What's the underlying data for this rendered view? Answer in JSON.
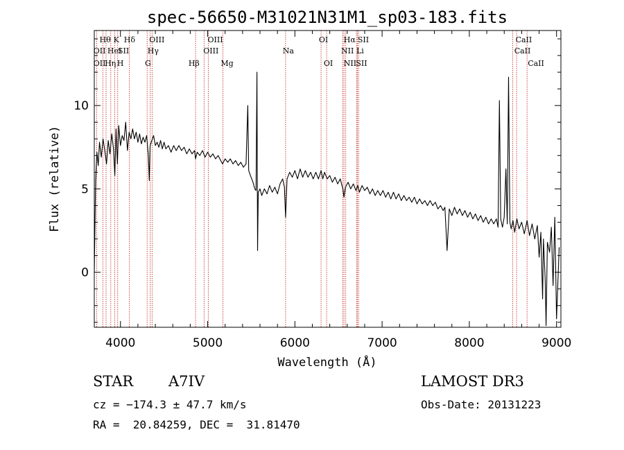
{
  "chart_data": {
    "type": "line",
    "title": "spec-56650-M31021N31M1_sp03-183.fits",
    "xlabel": "Wavelength (Å)",
    "ylabel": "Flux (relative)",
    "xlim": [
      3700,
      9050
    ],
    "ylim": [
      -3.3,
      14.5
    ],
    "xticks": [
      4000,
      5000,
      6000,
      7000,
      8000,
      9000
    ],
    "yticks": [
      0,
      5,
      10
    ],
    "xtick_labels": [
      "4000",
      "5000",
      "6000",
      "7000",
      "8000",
      "9000"
    ],
    "ytick_labels": [
      "0",
      "5",
      "10"
    ],
    "spectrum": [
      [
        3700,
        0.0
      ],
      [
        3715,
        5.5
      ],
      [
        3730,
        7.2
      ],
      [
        3745,
        6.4
      ],
      [
        3760,
        7.8
      ],
      [
        3780,
        6.9
      ],
      [
        3800,
        8.0
      ],
      [
        3820,
        7.3
      ],
      [
        3840,
        6.5
      ],
      [
        3860,
        7.9
      ],
      [
        3880,
        7.1
      ],
      [
        3900,
        8.3
      ],
      [
        3920,
        7.4
      ],
      [
        3935,
        5.8
      ],
      [
        3950,
        8.6
      ],
      [
        3965,
        6.5
      ],
      [
        3980,
        8.8
      ],
      [
        4000,
        7.6
      ],
      [
        4020,
        8.2
      ],
      [
        4040,
        7.9
      ],
      [
        4060,
        9.0
      ],
      [
        4080,
        7.3
      ],
      [
        4100,
        8.4
      ],
      [
        4120,
        8.0
      ],
      [
        4140,
        8.6
      ],
      [
        4160,
        8.0
      ],
      [
        4180,
        8.4
      ],
      [
        4200,
        7.8
      ],
      [
        4220,
        8.3
      ],
      [
        4240,
        7.7
      ],
      [
        4260,
        8.1
      ],
      [
        4280,
        7.8
      ],
      [
        4300,
        8.2
      ],
      [
        4320,
        7.0
      ],
      [
        4330,
        5.5
      ],
      [
        4340,
        7.6
      ],
      [
        4360,
        7.9
      ],
      [
        4380,
        8.2
      ],
      [
        4400,
        7.6
      ],
      [
        4420,
        7.8
      ],
      [
        4440,
        7.5
      ],
      [
        4460,
        7.9
      ],
      [
        4480,
        7.4
      ],
      [
        4500,
        7.8
      ],
      [
        4520,
        7.4
      ],
      [
        4550,
        7.6
      ],
      [
        4580,
        7.2
      ],
      [
        4610,
        7.6
      ],
      [
        4640,
        7.3
      ],
      [
        4670,
        7.6
      ],
      [
        4700,
        7.3
      ],
      [
        4730,
        7.5
      ],
      [
        4760,
        7.1
      ],
      [
        4790,
        7.4
      ],
      [
        4820,
        7.1
      ],
      [
        4850,
        7.3
      ],
      [
        4861,
        6.8
      ],
      [
        4880,
        7.2
      ],
      [
        4910,
        7.0
      ],
      [
        4940,
        7.3
      ],
      [
        4970,
        6.9
      ],
      [
        5000,
        7.2
      ],
      [
        5030,
        6.9
      ],
      [
        5060,
        7.1
      ],
      [
        5090,
        6.8
      ],
      [
        5120,
        7.0
      ],
      [
        5150,
        6.7
      ],
      [
        5170,
        6.5
      ],
      [
        5200,
        6.8
      ],
      [
        5230,
        6.6
      ],
      [
        5260,
        6.8
      ],
      [
        5290,
        6.5
      ],
      [
        5320,
        6.7
      ],
      [
        5350,
        6.4
      ],
      [
        5380,
        6.6
      ],
      [
        5410,
        6.3
      ],
      [
        5440,
        6.5
      ],
      [
        5460,
        10.0
      ],
      [
        5470,
        6.1
      ],
      [
        5490,
        5.8
      ],
      [
        5520,
        5.4
      ],
      [
        5540,
        5.0
      ],
      [
        5555,
        4.9
      ],
      [
        5565,
        12.0
      ],
      [
        5572,
        1.3
      ],
      [
        5580,
        4.8
      ],
      [
        5600,
        5.0
      ],
      [
        5620,
        4.6
      ],
      [
        5650,
        5.0
      ],
      [
        5680,
        4.7
      ],
      [
        5710,
        5.2
      ],
      [
        5740,
        4.8
      ],
      [
        5770,
        5.1
      ],
      [
        5800,
        4.7
      ],
      [
        5830,
        5.3
      ],
      [
        5860,
        5.6
      ],
      [
        5880,
        5.1
      ],
      [
        5893,
        3.3
      ],
      [
        5910,
        5.6
      ],
      [
        5940,
        6.0
      ],
      [
        5970,
        5.7
      ],
      [
        6000,
        6.1
      ],
      [
        6030,
        5.6
      ],
      [
        6060,
        6.2
      ],
      [
        6090,
        5.7
      ],
      [
        6120,
        6.1
      ],
      [
        6150,
        5.7
      ],
      [
        6180,
        6.0
      ],
      [
        6210,
        5.6
      ],
      [
        6240,
        6.0
      ],
      [
        6270,
        5.6
      ],
      [
        6300,
        6.1
      ],
      [
        6320,
        5.6
      ],
      [
        6340,
        6.0
      ],
      [
        6370,
        5.6
      ],
      [
        6400,
        5.8
      ],
      [
        6430,
        5.4
      ],
      [
        6460,
        5.7
      ],
      [
        6490,
        5.3
      ],
      [
        6520,
        5.6
      ],
      [
        6550,
        5.0
      ],
      [
        6563,
        4.5
      ],
      [
        6580,
        5.1
      ],
      [
        6610,
        5.4
      ],
      [
        6640,
        5.0
      ],
      [
        6670,
        5.3
      ],
      [
        6700,
        4.9
      ],
      [
        6720,
        5.2
      ],
      [
        6740,
        4.8
      ],
      [
        6770,
        5.2
      ],
      [
        6800,
        4.9
      ],
      [
        6830,
        5.1
      ],
      [
        6860,
        4.7
      ],
      [
        6890,
        5.0
      ],
      [
        6920,
        4.6
      ],
      [
        6950,
        4.9
      ],
      [
        6980,
        4.6
      ],
      [
        7010,
        4.9
      ],
      [
        7040,
        4.5
      ],
      [
        7070,
        4.8
      ],
      [
        7100,
        4.4
      ],
      [
        7130,
        4.8
      ],
      [
        7160,
        4.4
      ],
      [
        7190,
        4.7
      ],
      [
        7220,
        4.3
      ],
      [
        7250,
        4.6
      ],
      [
        7280,
        4.3
      ],
      [
        7310,
        4.5
      ],
      [
        7340,
        4.2
      ],
      [
        7370,
        4.5
      ],
      [
        7400,
        4.1
      ],
      [
        7430,
        4.4
      ],
      [
        7460,
        4.1
      ],
      [
        7490,
        4.3
      ],
      [
        7520,
        4.0
      ],
      [
        7550,
        4.3
      ],
      [
        7580,
        4.0
      ],
      [
        7610,
        4.2
      ],
      [
        7640,
        3.8
      ],
      [
        7670,
        4.0
      ],
      [
        7700,
        3.7
      ],
      [
        7720,
        3.9
      ],
      [
        7745,
        1.3
      ],
      [
        7770,
        3.8
      ],
      [
        7800,
        3.4
      ],
      [
        7830,
        3.9
      ],
      [
        7860,
        3.5
      ],
      [
        7890,
        3.8
      ],
      [
        7920,
        3.4
      ],
      [
        7950,
        3.7
      ],
      [
        7980,
        3.3
      ],
      [
        8010,
        3.6
      ],
      [
        8040,
        3.2
      ],
      [
        8070,
        3.5
      ],
      [
        8100,
        3.1
      ],
      [
        8130,
        3.4
      ],
      [
        8160,
        3.0
      ],
      [
        8190,
        3.3
      ],
      [
        8220,
        2.9
      ],
      [
        8250,
        3.2
      ],
      [
        8280,
        2.9
      ],
      [
        8310,
        3.2
      ],
      [
        8330,
        2.7
      ],
      [
        8345,
        10.3
      ],
      [
        8360,
        3.2
      ],
      [
        8380,
        2.7
      ],
      [
        8400,
        3.3
      ],
      [
        8420,
        6.2
      ],
      [
        8435,
        2.9
      ],
      [
        8450,
        11.7
      ],
      [
        8465,
        3.0
      ],
      [
        8480,
        2.6
      ],
      [
        8500,
        3.1
      ],
      [
        8520,
        2.4
      ],
      [
        8545,
        3.2
      ],
      [
        8570,
        2.6
      ],
      [
        8600,
        3.0
      ],
      [
        8630,
        2.3
      ],
      [
        8662,
        3.1
      ],
      [
        8690,
        2.2
      ],
      [
        8720,
        2.9
      ],
      [
        8750,
        2.0
      ],
      [
        8780,
        2.8
      ],
      [
        8800,
        0.9
      ],
      [
        8820,
        2.4
      ],
      [
        8840,
        -1.6
      ],
      [
        8850,
        2.0
      ],
      [
        8870,
        -0.5
      ],
      [
        8880,
        -3.2
      ],
      [
        8895,
        1.8
      ],
      [
        8920,
        1.2
      ],
      [
        8940,
        2.7
      ],
      [
        8960,
        -0.8
      ],
      [
        8980,
        3.3
      ],
      [
        9000,
        -2.8
      ],
      [
        9030,
        1.5
      ]
    ],
    "line_markers": [
      {
        "wavelength": 3727,
        "labels": [
          "OII",
          "OII"
        ]
      },
      {
        "wavelength": 3798,
        "labels": [
          "Hθ",
          ""
        ]
      },
      {
        "wavelength": 3835,
        "labels": [
          "",
          "Hη"
        ]
      },
      {
        "wavelength": 3889,
        "labels": [
          "HeI",
          ""
        ]
      },
      {
        "wavelength": 3934,
        "labels": [
          "K",
          ""
        ]
      },
      {
        "wavelength": 3968,
        "labels": [
          "H",
          "SII"
        ]
      },
      {
        "wavelength": 4102,
        "labels": [
          "Hδ",
          ""
        ]
      },
      {
        "wavelength": 4306,
        "labels": [
          "G",
          ""
        ]
      },
      {
        "wavelength": 4341,
        "labels": [
          "Hγ",
          ""
        ]
      },
      {
        "wavelength": 4363,
        "labels": [
          "OIII",
          ""
        ]
      },
      {
        "wavelength": 4861,
        "labels": [
          "Hβ",
          ""
        ]
      },
      {
        "wavelength": 4959,
        "labels": [
          "OIII",
          ""
        ]
      },
      {
        "wavelength": 5007,
        "labels": [
          "OIII",
          ""
        ]
      },
      {
        "wavelength": 5175,
        "labels": [
          "Mg",
          ""
        ]
      },
      {
        "wavelength": 5893,
        "labels": [
          "Na",
          ""
        ]
      },
      {
        "wavelength": 6300,
        "labels": [
          "OI",
          ""
        ]
      },
      {
        "wavelength": 6364,
        "labels": [
          "OI",
          ""
        ]
      },
      {
        "wavelength": 6548,
        "labels": [
          "NII",
          "NII"
        ]
      },
      {
        "wavelength": 6563,
        "labels": [
          "Hα",
          ""
        ]
      },
      {
        "wavelength": 6583,
        "labels": [
          "",
          ""
        ]
      },
      {
        "wavelength": 6707,
        "labels": [
          "Li",
          ""
        ]
      },
      {
        "wavelength": 6717,
        "labels": [
          "SII",
          "SII"
        ]
      },
      {
        "wavelength": 6731,
        "labels": [
          "",
          ""
        ]
      },
      {
        "wavelength": 8498,
        "labels": [
          "CaII",
          ""
        ]
      },
      {
        "wavelength": 8542,
        "labels": [
          "CaII",
          ""
        ]
      },
      {
        "wavelength": 8662,
        "labels": [
          "CaII",
          ""
        ]
      }
    ],
    "line_labels_placed": [
      {
        "text": "Hθ",
        "wavelength": 3760,
        "row": 0
      },
      {
        "text": "K",
        "wavelength": 3920,
        "row": 0
      },
      {
        "text": "Hδ",
        "wavelength": 4040,
        "row": 0
      },
      {
        "text": "OIII",
        "wavelength": 4330,
        "row": 0
      },
      {
        "text": "OIII",
        "wavelength": 5000,
        "row": 0
      },
      {
        "text": "OI",
        "wavelength": 6275,
        "row": 0
      },
      {
        "text": "Hα",
        "wavelength": 6560,
        "row": 0
      },
      {
        "text": "SII",
        "wavelength": 6720,
        "row": 0
      },
      {
        "text": "CaII",
        "wavelength": 8530,
        "row": 0
      },
      {
        "text": "OII",
        "wavelength": 3690,
        "row": 1
      },
      {
        "text": "HeI",
        "wavelength": 3850,
        "row": 1
      },
      {
        "text": "SII",
        "wavelength": 3970,
        "row": 1
      },
      {
        "text": "Hγ",
        "wavelength": 4310,
        "row": 1
      },
      {
        "text": "OIII",
        "wavelength": 4950,
        "row": 1
      },
      {
        "text": "Na",
        "wavelength": 5860,
        "row": 1
      },
      {
        "text": "NII",
        "wavelength": 6530,
        "row": 1
      },
      {
        "text": "Li",
        "wavelength": 6705,
        "row": 1
      },
      {
        "text": "CaII",
        "wavelength": 8515,
        "row": 1
      },
      {
        "text": "OII",
        "wavelength": 3690,
        "row": 2
      },
      {
        "text": "Hη",
        "wavelength": 3820,
        "row": 2
      },
      {
        "text": "H",
        "wavelength": 3960,
        "row": 2
      },
      {
        "text": "G",
        "wavelength": 4280,
        "row": 2
      },
      {
        "text": "Hβ",
        "wavelength": 4780,
        "row": 2
      },
      {
        "text": "Mg",
        "wavelength": 5150,
        "row": 2
      },
      {
        "text": "OI",
        "wavelength": 6330,
        "row": 2
      },
      {
        "text": "NII",
        "wavelength": 6560,
        "row": 2
      },
      {
        "text": "SII",
        "wavelength": 6700,
        "row": 2
      },
      {
        "text": "CaII",
        "wavelength": 8670,
        "row": 2
      }
    ]
  },
  "info": {
    "object_class": "STAR",
    "subclass": "A7IV",
    "cz": "cz = −174.3 ± 47.7 km/s",
    "coords": "RA =  20.84259, DEC =  31.81470",
    "survey": "LAMOST DR3",
    "obs_date": "Obs-Date: 20131223"
  },
  "colors": {
    "spectrum": "#000000",
    "marker": "#c0392b",
    "axis": "#000000",
    "background": "#ffffff"
  }
}
